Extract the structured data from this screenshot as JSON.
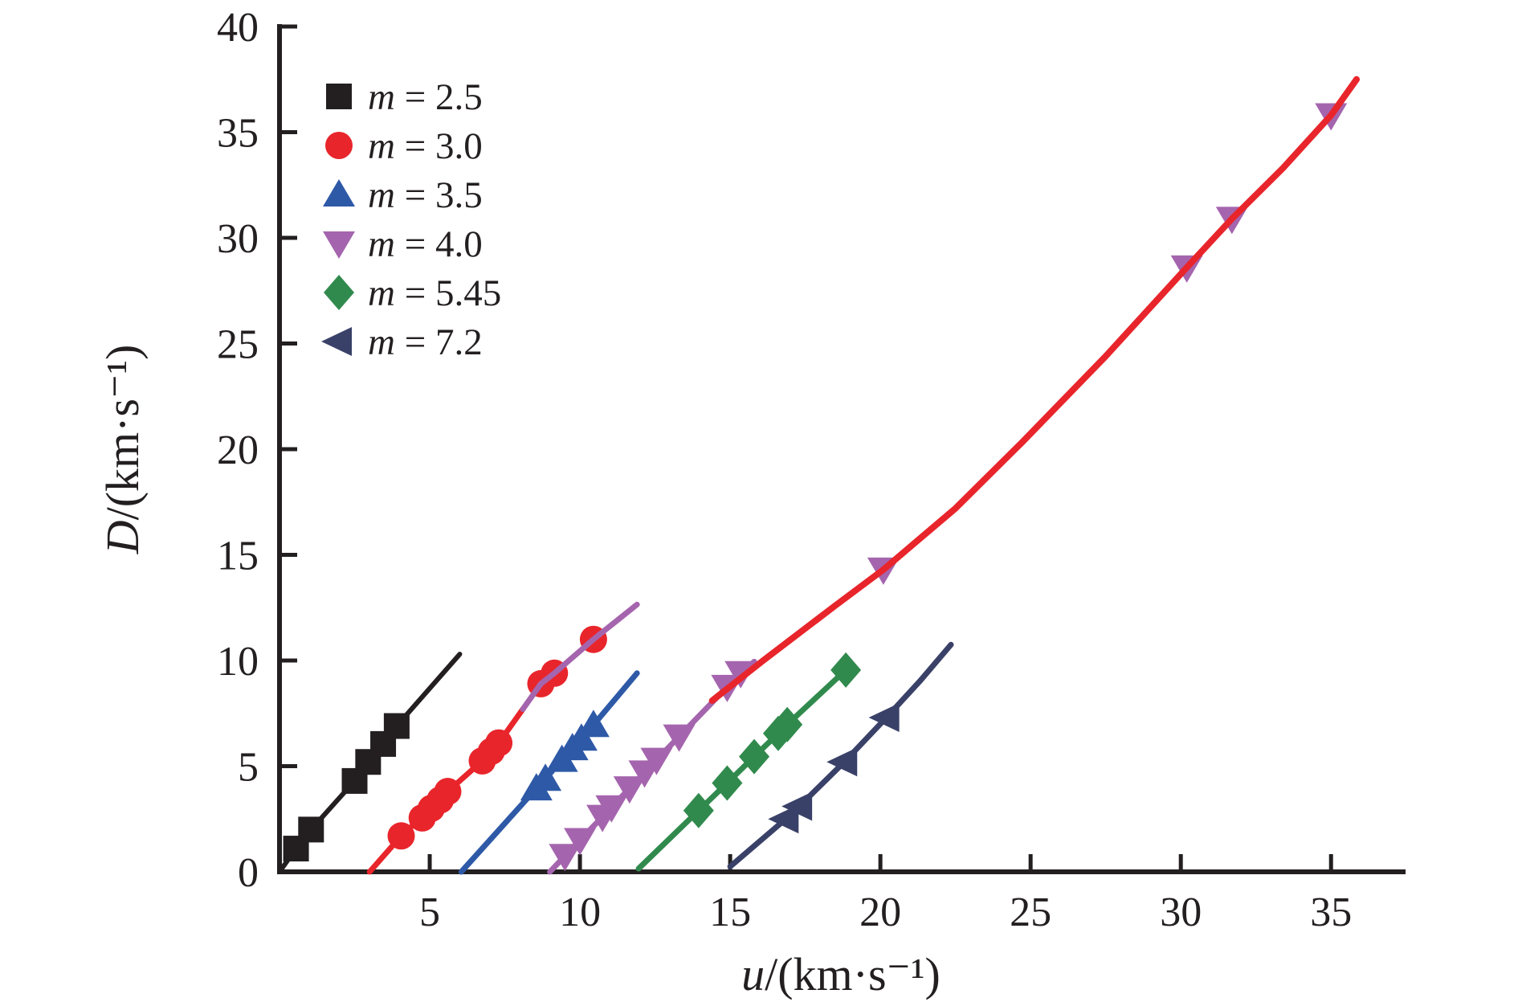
{
  "chart_data": {
    "type": "scatter",
    "title": "",
    "xlabel": {
      "variable": "u",
      "unit": "/(km·s⁻¹)"
    },
    "ylabel": {
      "variable": "D",
      "unit": "/(km·s⁻¹)"
    },
    "xlim": [
      0,
      37.4
    ],
    "ylim": [
      0,
      40
    ],
    "xticks": [
      5,
      10,
      15,
      20,
      25,
      30,
      35
    ],
    "yticks": [
      0,
      5,
      10,
      15,
      20,
      25,
      30,
      35,
      40
    ],
    "grid": false,
    "legend_position": "top-left",
    "axis_color": "#231f20",
    "series": [
      {
        "label": "m = 2.5",
        "marker": "square",
        "color": "#231f20",
        "points": [
          [
            0.55,
            1.1
          ],
          [
            1.05,
            2.0
          ],
          [
            2.5,
            4.3
          ],
          [
            2.95,
            5.2
          ],
          [
            3.45,
            6.05
          ],
          [
            3.9,
            6.9
          ]
        ]
      },
      {
        "label": "m = 3.0",
        "marker": "circle",
        "color": "#e8252b",
        "points": [
          [
            4.05,
            1.7
          ],
          [
            4.75,
            2.55
          ],
          [
            5.05,
            3.0
          ],
          [
            5.35,
            3.4
          ],
          [
            5.6,
            3.8
          ],
          [
            6.75,
            5.25
          ],
          [
            7.05,
            5.7
          ],
          [
            7.3,
            6.1
          ],
          [
            8.7,
            8.9
          ],
          [
            9.15,
            9.4
          ],
          [
            10.45,
            11.0
          ]
        ]
      },
      {
        "label": "m = 3.5",
        "marker": "triangle-up",
        "color": "#2e59a7",
        "points": [
          [
            8.55,
            3.95
          ],
          [
            8.85,
            4.4
          ],
          [
            9.4,
            5.3
          ],
          [
            9.75,
            5.85
          ],
          [
            10.05,
            6.3
          ],
          [
            10.45,
            6.95
          ]
        ]
      },
      {
        "label": "m = 4.0",
        "marker": "triangle-down",
        "color": "#a565ae",
        "points": [
          [
            9.5,
            0.75
          ],
          [
            10.0,
            1.5
          ],
          [
            10.75,
            2.6
          ],
          [
            11.05,
            3.05
          ],
          [
            11.65,
            3.95
          ],
          [
            12.15,
            4.7
          ],
          [
            12.55,
            5.3
          ],
          [
            13.3,
            6.4
          ],
          [
            14.9,
            8.75
          ],
          [
            15.35,
            9.4
          ],
          [
            20.1,
            14.3
          ],
          [
            30.2,
            28.6
          ],
          [
            31.7,
            30.9
          ],
          [
            35.0,
            35.8
          ]
        ]
      },
      {
        "label": "m = 5.45",
        "marker": "diamond",
        "color": "#318a4d",
        "points": [
          [
            13.95,
            2.9
          ],
          [
            14.9,
            4.2
          ],
          [
            15.8,
            5.45
          ],
          [
            16.6,
            6.55
          ],
          [
            16.9,
            6.97
          ],
          [
            18.85,
            9.55
          ]
        ]
      },
      {
        "label": "m = 7.2",
        "marker": "triangle-left",
        "color": "#3a4168",
        "points": [
          [
            16.85,
            2.5
          ],
          [
            17.3,
            3.1
          ],
          [
            18.8,
            5.2
          ],
          [
            20.2,
            7.3
          ]
        ]
      }
    ],
    "fit_lines": [
      {
        "name": "fit-m-2.5",
        "color": "#231f20",
        "width": 6,
        "points": [
          [
            0,
            0
          ],
          [
            0.55,
            1.1
          ],
          [
            1.05,
            2.0
          ],
          [
            2.5,
            4.3
          ],
          [
            2.95,
            5.2
          ],
          [
            3.45,
            6.05
          ],
          [
            3.9,
            6.9
          ],
          [
            6.0,
            10.3
          ]
        ]
      },
      {
        "name": "fit-m-3.0-low",
        "color": "#e8252b",
        "width": 7,
        "points": [
          [
            3.0,
            0
          ],
          [
            4.05,
            1.7
          ],
          [
            5.05,
            3.0
          ],
          [
            5.6,
            3.8
          ],
          [
            6.75,
            5.25
          ],
          [
            7.3,
            6.1
          ],
          [
            8.1,
            7.7
          ]
        ]
      },
      {
        "name": "fit-m-3.0-high",
        "color": "#a565ae",
        "width": 7,
        "points": [
          [
            8.1,
            7.7
          ],
          [
            8.7,
            8.9
          ],
          [
            9.15,
            9.4
          ],
          [
            10.45,
            11.0
          ],
          [
            11.9,
            12.65
          ]
        ]
      },
      {
        "name": "fit-m-3.5",
        "color": "#2e59a7",
        "width": 7,
        "points": [
          [
            6.05,
            0
          ],
          [
            8.55,
            3.95
          ],
          [
            8.85,
            4.4
          ],
          [
            9.4,
            5.3
          ],
          [
            9.75,
            5.85
          ],
          [
            10.05,
            6.3
          ],
          [
            10.45,
            6.95
          ],
          [
            11.9,
            9.4
          ]
        ]
      },
      {
        "name": "fit-m-4.0-low",
        "color": "#a565ae",
        "width": 7,
        "points": [
          [
            9.0,
            0
          ],
          [
            9.5,
            0.75
          ],
          [
            10.0,
            1.5
          ],
          [
            10.75,
            2.6
          ],
          [
            11.05,
            3.05
          ],
          [
            11.65,
            3.95
          ],
          [
            12.15,
            4.7
          ],
          [
            12.55,
            5.3
          ],
          [
            13.3,
            6.4
          ],
          [
            14.9,
            8.75
          ],
          [
            15.8,
            9.95
          ]
        ]
      },
      {
        "name": "fit-m-4.0-high",
        "color": "#e8252b",
        "width": 8,
        "points": [
          [
            14.4,
            8.1
          ],
          [
            16.1,
            10.0
          ],
          [
            18.5,
            12.6
          ],
          [
            20.1,
            14.3
          ],
          [
            22.5,
            17.2
          ],
          [
            24.7,
            20.3
          ],
          [
            27.5,
            24.4
          ],
          [
            30.2,
            28.6
          ],
          [
            31.7,
            30.9
          ],
          [
            33.4,
            33.3
          ],
          [
            35.0,
            35.8
          ],
          [
            35.85,
            37.5
          ]
        ]
      },
      {
        "name": "fit-m-5.45",
        "color": "#318a4d",
        "width": 7,
        "points": [
          [
            11.95,
            0.15
          ],
          [
            13.95,
            2.9
          ],
          [
            14.9,
            4.2
          ],
          [
            15.8,
            5.45
          ],
          [
            16.6,
            6.55
          ],
          [
            16.9,
            6.97
          ],
          [
            18.85,
            9.55
          ]
        ]
      },
      {
        "name": "fit-m-7.2",
        "color": "#3a4168",
        "width": 7,
        "points": [
          [
            15.0,
            0.25
          ],
          [
            16.85,
            2.5
          ],
          [
            17.3,
            3.1
          ],
          [
            18.8,
            5.2
          ],
          [
            20.2,
            7.3
          ],
          [
            21.3,
            9.0
          ],
          [
            22.35,
            10.75
          ]
        ]
      }
    ]
  }
}
